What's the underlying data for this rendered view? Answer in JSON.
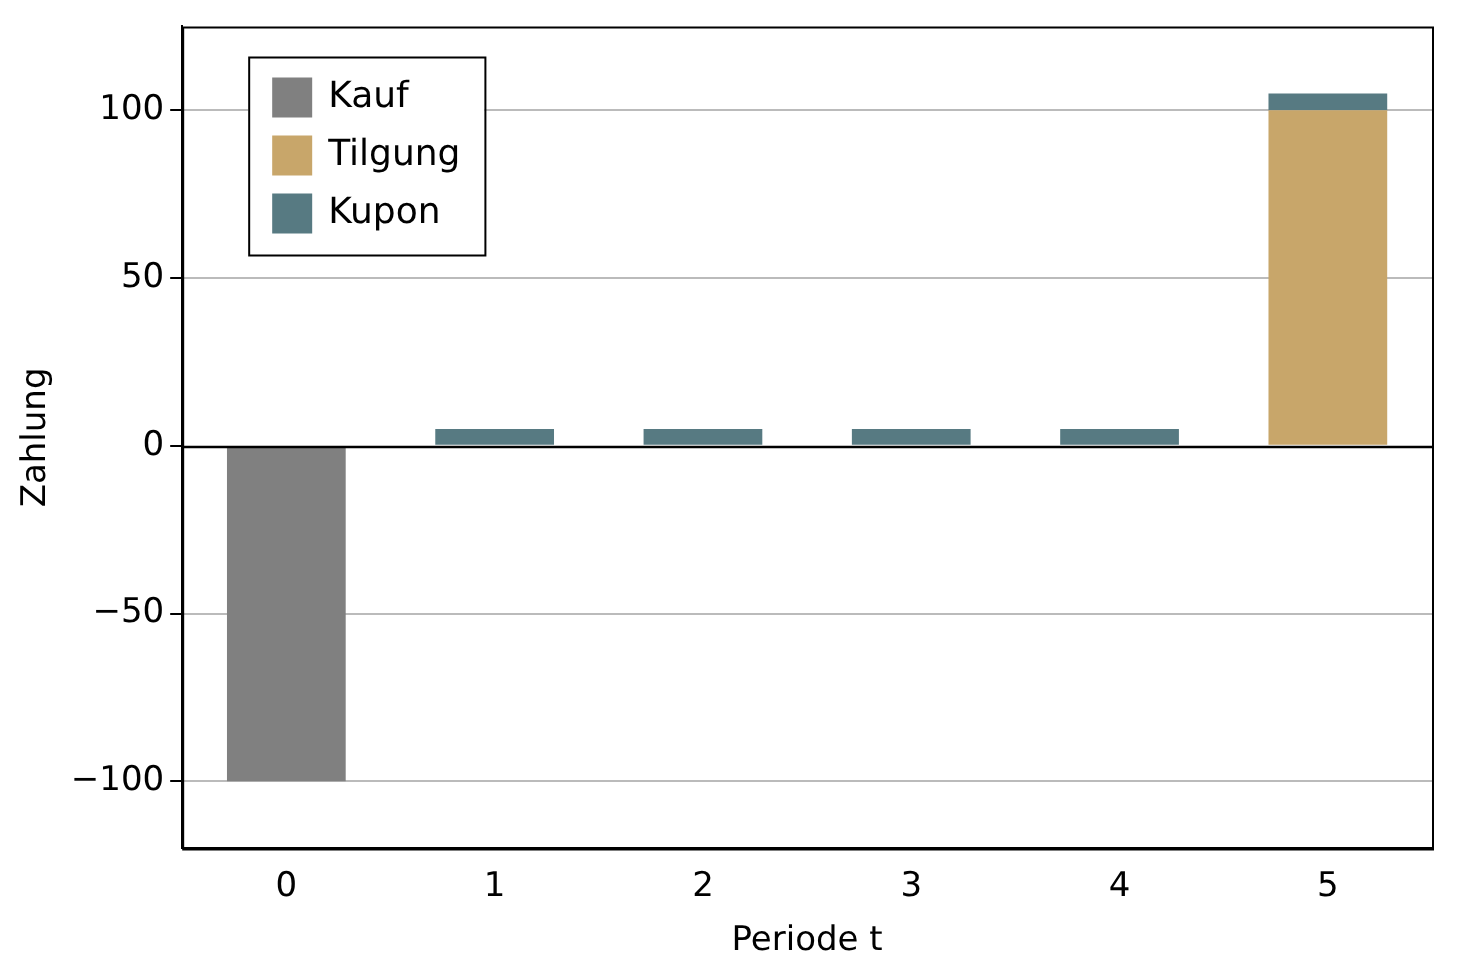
{
  "chart_data": {
    "type": "bar",
    "xlabel": "Periode t",
    "ylabel": "Zahlung",
    "categories": [
      "0",
      "1",
      "2",
      "3",
      "4",
      "5"
    ],
    "stacked": true,
    "series": [
      {
        "name": "Kauf",
        "color": "#808080",
        "values": [
          -100,
          null,
          null,
          null,
          null,
          null
        ]
      },
      {
        "name": "Tilgung",
        "color": "#c8a66a",
        "values": [
          null,
          null,
          null,
          null,
          null,
          100
        ]
      },
      {
        "name": "Kupon",
        "color": "#577a82",
        "values": [
          null,
          5,
          5,
          5,
          5,
          5
        ]
      }
    ],
    "ylim": [
      -120,
      125
    ],
    "yticks": [
      {
        "value": -100,
        "label": "−100"
      },
      {
        "value": -50,
        "label": "−50"
      },
      0,
      50,
      100
    ],
    "ref_lines": [
      {
        "axis": "y",
        "value": 0,
        "color": "#000000"
      }
    ],
    "grid": "y",
    "legend": "top left"
  }
}
